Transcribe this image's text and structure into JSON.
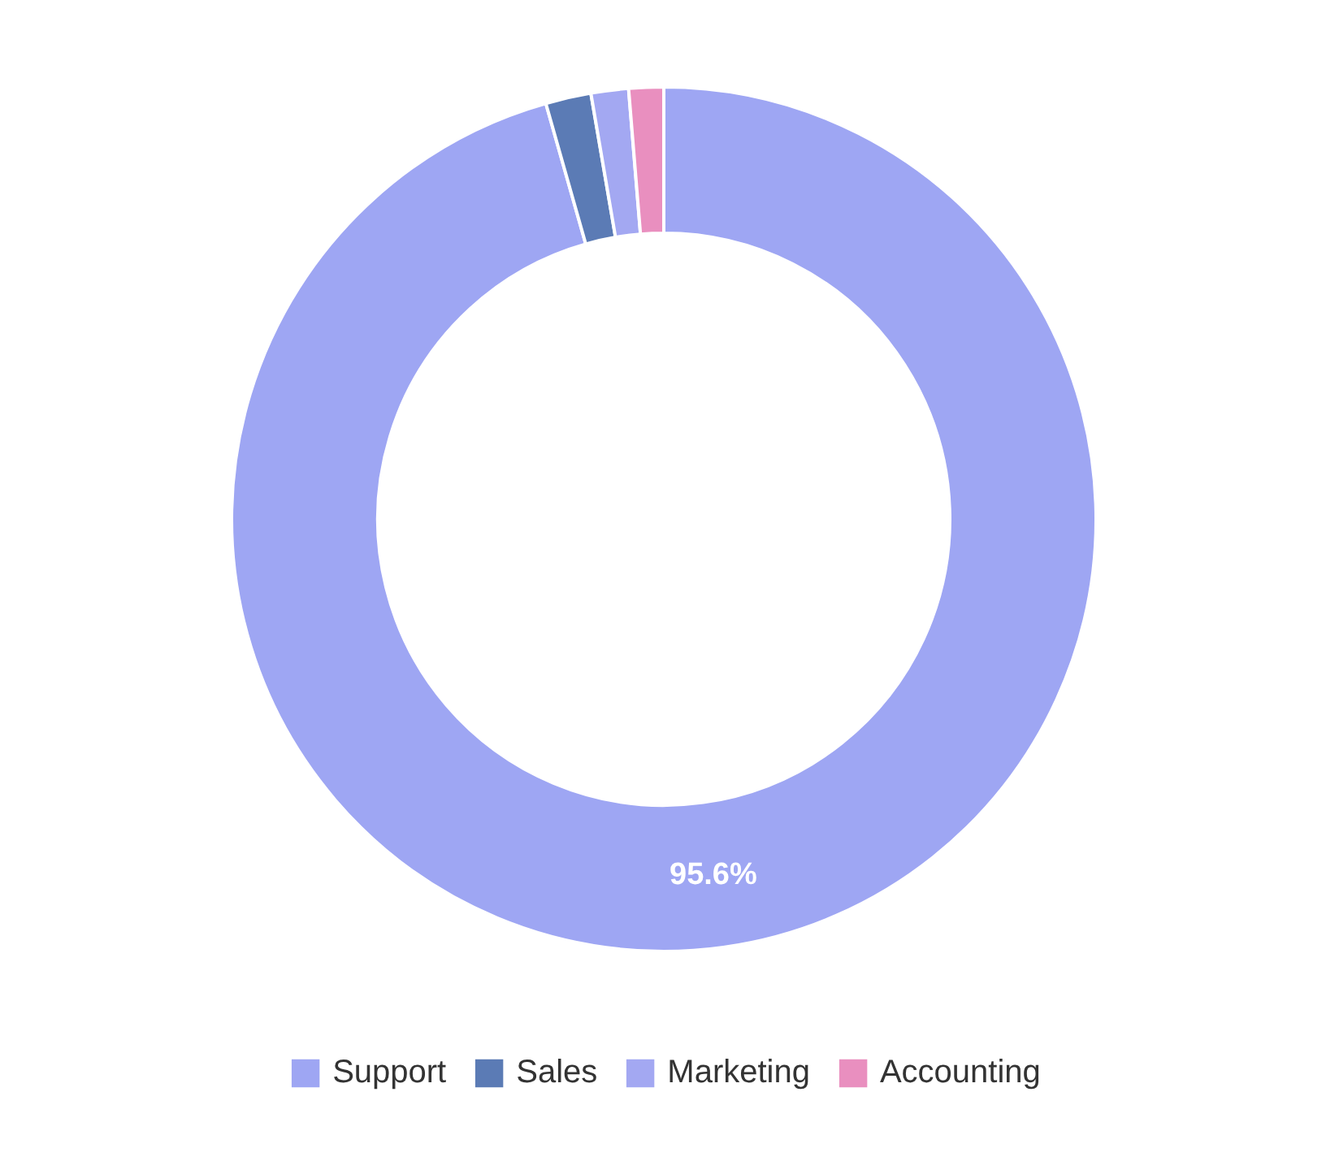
{
  "chart_data": {
    "type": "donut",
    "categories": [
      "Support",
      "Sales",
      "Marketing",
      "Accounting"
    ],
    "values": [
      95.6,
      1.7,
      1.4,
      1.3
    ],
    "colors": [
      "#9ea6f3",
      "#5b7bb5",
      "#a3a8f2",
      "#e98fbf"
    ],
    "value_labels": [
      "95.6%",
      null,
      null,
      null
    ],
    "legend": "bottom"
  }
}
